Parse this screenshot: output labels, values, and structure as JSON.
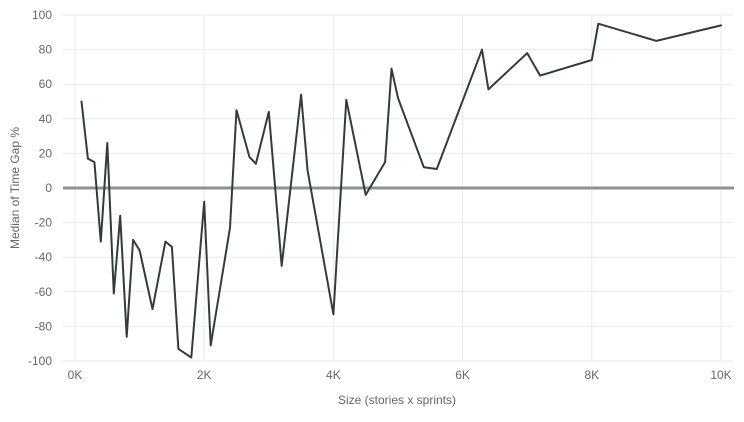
{
  "chart_data": {
    "type": "line",
    "title": "",
    "xlabel": "Size (stories x sprints)",
    "ylabel": "Median of Time Gap %",
    "xlim": [
      0,
      10000
    ],
    "ylim": [
      -100,
      100
    ],
    "grid": true,
    "x_ticks": [
      {
        "value": 0,
        "label": "0K"
      },
      {
        "value": 2000,
        "label": "2K"
      },
      {
        "value": 4000,
        "label": "4K"
      },
      {
        "value": 6000,
        "label": "6K"
      },
      {
        "value": 8000,
        "label": "8K"
      },
      {
        "value": 10000,
        "label": "10K"
      }
    ],
    "y_ticks": [
      {
        "value": 100,
        "label": "100"
      },
      {
        "value": 80,
        "label": "80"
      },
      {
        "value": 60,
        "label": "60"
      },
      {
        "value": 40,
        "label": "40"
      },
      {
        "value": 20,
        "label": "20"
      },
      {
        "value": 0,
        "label": "0"
      },
      {
        "value": -20,
        "label": "-20"
      },
      {
        "value": -40,
        "label": "-40"
      },
      {
        "value": -60,
        "label": "-60"
      },
      {
        "value": -80,
        "label": "-80"
      },
      {
        "value": -100,
        "label": "-100"
      }
    ],
    "reference_line": {
      "y": 0,
      "color": "#8a9493"
    },
    "series": [
      {
        "color": "#323c3d",
        "points": [
          [
            100,
            50
          ],
          [
            200,
            17
          ],
          [
            300,
            15
          ],
          [
            400,
            -31
          ],
          [
            500,
            26
          ],
          [
            600,
            -61
          ],
          [
            700,
            -16
          ],
          [
            800,
            -86
          ],
          [
            900,
            -30
          ],
          [
            1000,
            -36
          ],
          [
            1200,
            -70
          ],
          [
            1400,
            -31
          ],
          [
            1500,
            -34
          ],
          [
            1600,
            -93
          ],
          [
            1800,
            -98
          ],
          [
            2000,
            -8
          ],
          [
            2100,
            -91
          ],
          [
            2400,
            -23
          ],
          [
            2500,
            45
          ],
          [
            2700,
            18
          ],
          [
            2800,
            14
          ],
          [
            3000,
            44
          ],
          [
            3200,
            -45
          ],
          [
            3500,
            54
          ],
          [
            3600,
            10
          ],
          [
            4000,
            -73
          ],
          [
            4200,
            51
          ],
          [
            4500,
            -4
          ],
          [
            4800,
            15
          ],
          [
            4900,
            69
          ],
          [
            5000,
            52
          ],
          [
            5400,
            12
          ],
          [
            5600,
            11
          ],
          [
            6300,
            80
          ],
          [
            6400,
            57
          ],
          [
            7000,
            78
          ],
          [
            7200,
            65
          ],
          [
            8000,
            74
          ],
          [
            8100,
            95
          ],
          [
            9000,
            85
          ],
          [
            10000,
            94
          ]
        ]
      }
    ]
  }
}
